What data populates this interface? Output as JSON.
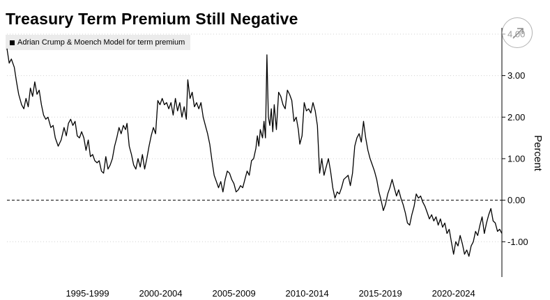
{
  "chart_data": {
    "type": "line",
    "title": "Treasury Term Premium Still Negative",
    "ylabel": "Percent",
    "ylim": [
      -1.85,
      4.15
    ],
    "yticks": [
      -1,
      0,
      1,
      2,
      3,
      4
    ],
    "ytick_labels": [
      "-1.00",
      "0.00",
      "1.00",
      "2.00",
      "3.00",
      "4.00"
    ],
    "xlim": [
      1992.0,
      2025.8
    ],
    "xtick_labels": [
      "1995-1999",
      "2000-2004",
      "2005-2009",
      "2010-2014",
      "2015-2019",
      "2020-2024"
    ],
    "xtick_centers": [
      1997.5,
      2002.5,
      2007.5,
      2012.5,
      2017.5,
      2022.5
    ],
    "reference_line": 0,
    "legend_position": "top-left",
    "grid": true,
    "series": [
      {
        "name": "Adrian Crump & Moench Model for term premium",
        "color": "#000000",
        "points": [
          [
            1992.0,
            3.65
          ],
          [
            1992.15,
            3.3
          ],
          [
            1992.3,
            3.4
          ],
          [
            1992.5,
            3.2
          ],
          [
            1992.65,
            2.85
          ],
          [
            1992.8,
            2.55
          ],
          [
            1993.0,
            2.3
          ],
          [
            1993.15,
            2.2
          ],
          [
            1993.3,
            2.45
          ],
          [
            1993.45,
            2.25
          ],
          [
            1993.6,
            2.7
          ],
          [
            1993.75,
            2.5
          ],
          [
            1993.9,
            2.85
          ],
          [
            1994.05,
            2.55
          ],
          [
            1994.2,
            2.65
          ],
          [
            1994.35,
            2.3
          ],
          [
            1994.5,
            2.05
          ],
          [
            1994.65,
            1.95
          ],
          [
            1994.8,
            2.0
          ],
          [
            1995.0,
            1.75
          ],
          [
            1995.15,
            1.8
          ],
          [
            1995.3,
            1.5
          ],
          [
            1995.5,
            1.3
          ],
          [
            1995.7,
            1.45
          ],
          [
            1995.9,
            1.75
          ],
          [
            1996.05,
            1.55
          ],
          [
            1996.2,
            1.85
          ],
          [
            1996.35,
            1.95
          ],
          [
            1996.5,
            1.8
          ],
          [
            1996.65,
            1.9
          ],
          [
            1996.8,
            1.55
          ],
          [
            1996.95,
            1.5
          ],
          [
            1997.1,
            1.65
          ],
          [
            1997.25,
            1.5
          ],
          [
            1997.4,
            1.2
          ],
          [
            1997.55,
            1.45
          ],
          [
            1997.7,
            1.05
          ],
          [
            1997.85,
            1.1
          ],
          [
            1998.0,
            0.95
          ],
          [
            1998.15,
            0.9
          ],
          [
            1998.3,
            0.95
          ],
          [
            1998.45,
            0.7
          ],
          [
            1998.6,
            0.65
          ],
          [
            1998.75,
            1.05
          ],
          [
            1998.9,
            0.75
          ],
          [
            1999.05,
            0.85
          ],
          [
            1999.2,
            1.0
          ],
          [
            1999.35,
            1.3
          ],
          [
            1999.5,
            1.5
          ],
          [
            1999.65,
            1.75
          ],
          [
            1999.8,
            1.6
          ],
          [
            1999.95,
            1.8
          ],
          [
            2000.1,
            1.7
          ],
          [
            2000.2,
            1.85
          ],
          [
            2000.35,
            1.3
          ],
          [
            2000.5,
            1.1
          ],
          [
            2000.65,
            0.85
          ],
          [
            2000.8,
            0.75
          ],
          [
            2000.95,
            1.0
          ],
          [
            2001.1,
            0.8
          ],
          [
            2001.25,
            1.1
          ],
          [
            2001.4,
            0.75
          ],
          [
            2001.55,
            1.0
          ],
          [
            2001.7,
            1.3
          ],
          [
            2001.85,
            1.55
          ],
          [
            2002.0,
            1.75
          ],
          [
            2002.15,
            1.6
          ],
          [
            2002.3,
            2.4
          ],
          [
            2002.45,
            2.3
          ],
          [
            2002.6,
            2.45
          ],
          [
            2002.75,
            2.3
          ],
          [
            2002.9,
            2.35
          ],
          [
            2003.05,
            2.2
          ],
          [
            2003.2,
            2.35
          ],
          [
            2003.35,
            2.05
          ],
          [
            2003.5,
            2.45
          ],
          [
            2003.65,
            2.15
          ],
          [
            2003.8,
            2.35
          ],
          [
            2003.95,
            2.0
          ],
          [
            2004.1,
            2.25
          ],
          [
            2004.25,
            1.95
          ],
          [
            2004.35,
            2.9
          ],
          [
            2004.5,
            2.45
          ],
          [
            2004.65,
            2.6
          ],
          [
            2004.8,
            2.25
          ],
          [
            2004.95,
            2.35
          ],
          [
            2005.1,
            2.2
          ],
          [
            2005.25,
            2.35
          ],
          [
            2005.4,
            2.0
          ],
          [
            2005.55,
            1.8
          ],
          [
            2005.7,
            1.6
          ],
          [
            2005.85,
            1.35
          ],
          [
            2006.0,
            0.95
          ],
          [
            2006.15,
            0.6
          ],
          [
            2006.3,
            0.45
          ],
          [
            2006.45,
            0.3
          ],
          [
            2006.6,
            0.45
          ],
          [
            2006.75,
            0.2
          ],
          [
            2006.9,
            0.5
          ],
          [
            2007.05,
            0.7
          ],
          [
            2007.2,
            0.65
          ],
          [
            2007.35,
            0.5
          ],
          [
            2007.5,
            0.4
          ],
          [
            2007.65,
            0.2
          ],
          [
            2007.8,
            0.25
          ],
          [
            2007.95,
            0.35
          ],
          [
            2008.1,
            0.3
          ],
          [
            2008.25,
            0.5
          ],
          [
            2008.4,
            0.7
          ],
          [
            2008.55,
            0.6
          ],
          [
            2008.7,
            0.95
          ],
          [
            2008.85,
            1.0
          ],
          [
            2009.0,
            1.25
          ],
          [
            2009.1,
            1.55
          ],
          [
            2009.2,
            1.3
          ],
          [
            2009.3,
            1.7
          ],
          [
            2009.45,
            1.5
          ],
          [
            2009.55,
            1.9
          ],
          [
            2009.65,
            1.5
          ],
          [
            2009.75,
            3.5
          ],
          [
            2009.85,
            2.0
          ],
          [
            2009.95,
            1.8
          ],
          [
            2010.05,
            2.2
          ],
          [
            2010.15,
            1.65
          ],
          [
            2010.25,
            2.3
          ],
          [
            2010.4,
            1.7
          ],
          [
            2010.55,
            2.6
          ],
          [
            2010.7,
            2.5
          ],
          [
            2010.85,
            2.3
          ],
          [
            2011.0,
            2.2
          ],
          [
            2011.15,
            2.65
          ],
          [
            2011.3,
            2.55
          ],
          [
            2011.45,
            2.4
          ],
          [
            2011.6,
            1.9
          ],
          [
            2011.75,
            2.0
          ],
          [
            2011.9,
            1.7
          ],
          [
            2012.0,
            1.35
          ],
          [
            2012.15,
            1.55
          ],
          [
            2012.3,
            2.35
          ],
          [
            2012.45,
            2.15
          ],
          [
            2012.6,
            2.2
          ],
          [
            2012.75,
            2.1
          ],
          [
            2012.9,
            2.35
          ],
          [
            2013.05,
            2.15
          ],
          [
            2013.2,
            1.8
          ],
          [
            2013.35,
            0.65
          ],
          [
            2013.5,
            1.0
          ],
          [
            2013.65,
            0.6
          ],
          [
            2013.8,
            0.8
          ],
          [
            2013.95,
            1.0
          ],
          [
            2014.1,
            0.7
          ],
          [
            2014.25,
            0.3
          ],
          [
            2014.4,
            0.05
          ],
          [
            2014.55,
            0.2
          ],
          [
            2014.7,
            0.15
          ],
          [
            2014.85,
            0.3
          ],
          [
            2015.0,
            0.5
          ],
          [
            2015.15,
            0.55
          ],
          [
            2015.3,
            0.6
          ],
          [
            2015.45,
            0.35
          ],
          [
            2015.6,
            0.65
          ],
          [
            2015.75,
            1.3
          ],
          [
            2015.9,
            1.5
          ],
          [
            2016.05,
            1.6
          ],
          [
            2016.2,
            1.4
          ],
          [
            2016.35,
            1.9
          ],
          [
            2016.5,
            1.5
          ],
          [
            2016.65,
            1.2
          ],
          [
            2016.8,
            1.0
          ],
          [
            2016.95,
            0.85
          ],
          [
            2017.1,
            0.7
          ],
          [
            2017.25,
            0.5
          ],
          [
            2017.4,
            0.2
          ],
          [
            2017.55,
            0.0
          ],
          [
            2017.7,
            -0.25
          ],
          [
            2017.85,
            -0.1
          ],
          [
            2018.0,
            0.15
          ],
          [
            2018.15,
            0.3
          ],
          [
            2018.3,
            0.5
          ],
          [
            2018.45,
            0.3
          ],
          [
            2018.6,
            0.1
          ],
          [
            2018.75,
            0.25
          ],
          [
            2018.9,
            0.05
          ],
          [
            2019.05,
            -0.1
          ],
          [
            2019.2,
            -0.3
          ],
          [
            2019.35,
            -0.55
          ],
          [
            2019.5,
            -0.6
          ],
          [
            2019.65,
            -0.35
          ],
          [
            2019.8,
            -0.15
          ],
          [
            2019.95,
            0.15
          ],
          [
            2020.1,
            0.05
          ],
          [
            2020.25,
            0.1
          ],
          [
            2020.4,
            -0.05
          ],
          [
            2020.55,
            -0.15
          ],
          [
            2020.7,
            -0.3
          ],
          [
            2020.85,
            -0.45
          ],
          [
            2021.0,
            -0.35
          ],
          [
            2021.15,
            -0.5
          ],
          [
            2021.3,
            -0.4
          ],
          [
            2021.45,
            -0.6
          ],
          [
            2021.6,
            -0.45
          ],
          [
            2021.75,
            -0.65
          ],
          [
            2021.9,
            -0.55
          ],
          [
            2022.05,
            -0.8
          ],
          [
            2022.2,
            -0.7
          ],
          [
            2022.35,
            -1.0
          ],
          [
            2022.5,
            -1.3
          ],
          [
            2022.65,
            -1.0
          ],
          [
            2022.8,
            -1.1
          ],
          [
            2022.95,
            -0.85
          ],
          [
            2023.1,
            -1.05
          ],
          [
            2023.25,
            -1.3
          ],
          [
            2023.4,
            -1.2
          ],
          [
            2023.55,
            -1.35
          ],
          [
            2023.7,
            -1.1
          ],
          [
            2023.85,
            -1.0
          ],
          [
            2024.0,
            -0.75
          ],
          [
            2024.15,
            -0.85
          ],
          [
            2024.3,
            -0.6
          ],
          [
            2024.45,
            -0.4
          ],
          [
            2024.6,
            -0.8
          ],
          [
            2024.75,
            -0.55
          ],
          [
            2024.9,
            -0.35
          ],
          [
            2025.05,
            -0.2
          ],
          [
            2025.2,
            -0.5
          ],
          [
            2025.35,
            -0.55
          ],
          [
            2025.5,
            -0.75
          ],
          [
            2025.65,
            -0.7
          ],
          [
            2025.8,
            -0.8
          ]
        ]
      }
    ]
  }
}
